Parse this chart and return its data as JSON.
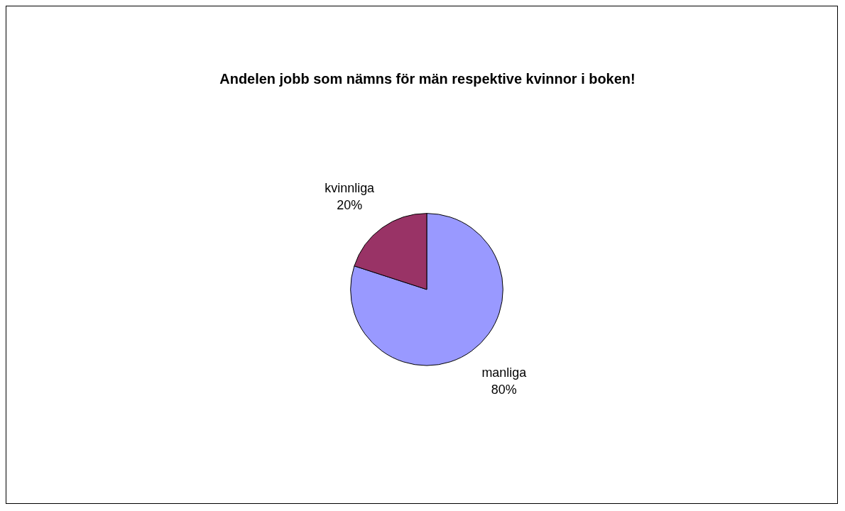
{
  "chart_data": {
    "type": "pie",
    "title": "Andelen jobb som nämns för män respektive kvinnor i boken!",
    "categories": [
      "manliga",
      "kvinnliga"
    ],
    "values": [
      80,
      20
    ],
    "colors": [
      "#9999ff",
      "#993366"
    ],
    "value_labels": [
      "80%",
      "20%"
    ],
    "legend": false
  }
}
